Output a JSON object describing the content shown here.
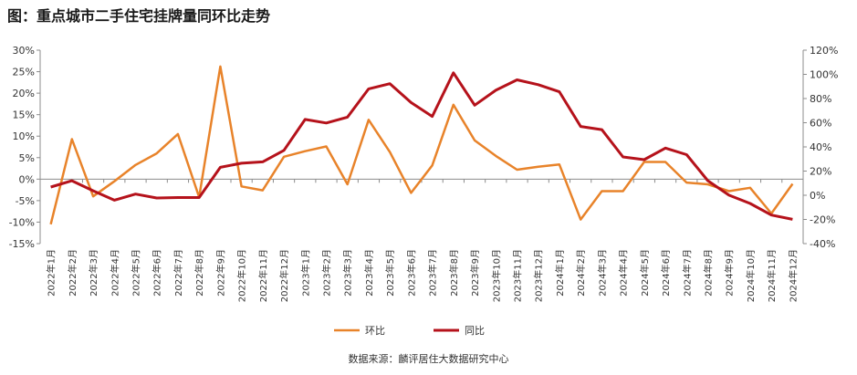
{
  "title": "图：重点城市二手住宅挂牌量同环比走势",
  "source": "数据来源：麟评居住大数据研究中心",
  "colors": {
    "mom": "#E8832A",
    "yoy": "#B5121B"
  },
  "chart_data": {
    "type": "line",
    "categories": [
      "2022年1月",
      "2022年2月",
      "2022年3月",
      "2022年4月",
      "2022年5月",
      "2022年6月",
      "2022年7月",
      "2022年8月",
      "2022年9月",
      "2022年10月",
      "2022年11月",
      "2022年12月",
      "2023年1月",
      "2023年2月",
      "2023年3月",
      "2023年4月",
      "2023年5月",
      "2023年6月",
      "2023年7月",
      "2023年8月",
      "2023年9月",
      "2023年10月",
      "2023年11月",
      "2023年12月",
      "2024年1月",
      "2024年2月",
      "2024年3月",
      "2024年4月",
      "2024年5月",
      "2024年6月",
      "2024年7月",
      "2024年8月",
      "2024年9月",
      "2024年10月",
      "2024年11月",
      "2024年12月"
    ],
    "series": [
      {
        "name": "环比",
        "axis": "left",
        "values": [
          -10.5,
          9.3,
          -4,
          -0.5,
          3.3,
          6,
          10.5,
          -4.2,
          26.2,
          -1.7,
          -2.6,
          5.2,
          6.5,
          7.6,
          -1.2,
          13.8,
          6.3,
          -3.2,
          3.2,
          17.3,
          9,
          5.4,
          2.2,
          2.9,
          3.4,
          -9.4,
          -2.8,
          -2.8,
          4,
          4,
          -0.8,
          -1.2,
          -2.8,
          -2,
          -8,
          -1.1
        ]
      },
      {
        "name": "同比",
        "axis": "right",
        "values": [
          6.8,
          12,
          3.7,
          -4.1,
          1,
          -2.3,
          -1.9,
          -1.9,
          23.1,
          26.5,
          27.6,
          37.1,
          62.7,
          59.8,
          64.6,
          88,
          92.3,
          76.7,
          65.2,
          101.3,
          74.5,
          86.9,
          95.5,
          91.5,
          85.6,
          56.9,
          54.3,
          31.7,
          29.4,
          39,
          33.6,
          12.1,
          0.1,
          -6.8,
          -16.4,
          -19.9
        ]
      }
    ],
    "y_left": {
      "ylim": [
        -15,
        30
      ],
      "ticks": [
        "-15%",
        "-10%",
        "-5%",
        "0%",
        "5%",
        "10%",
        "15%",
        "20%",
        "25%",
        "30%"
      ]
    },
    "y_right": {
      "ylim": [
        -40,
        120
      ],
      "ticks": [
        "-40%",
        "-20%",
        "0%",
        "20%",
        "40%",
        "60%",
        "80%",
        "100%",
        "120%"
      ]
    },
    "grid": false,
    "legend": {
      "position": "bottom",
      "items": [
        "环比",
        "同比"
      ]
    }
  }
}
